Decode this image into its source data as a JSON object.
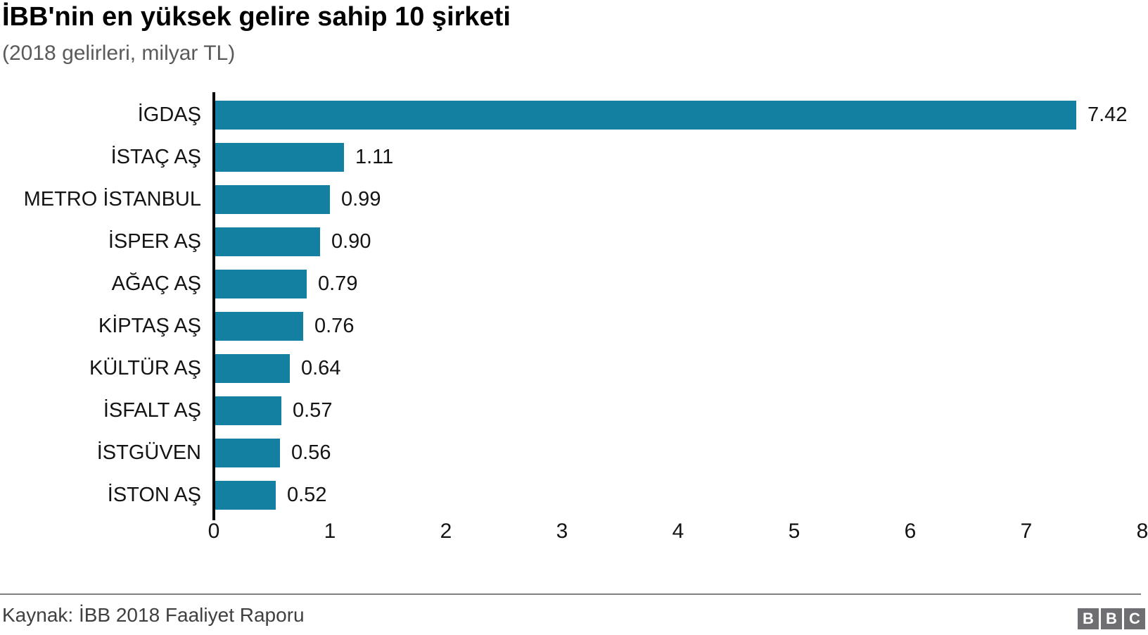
{
  "header": {
    "title": "İBB'nin en yüksek gelire sahip 10 şirketi",
    "subtitle": "(2018 gelirleri, milyar TL)"
  },
  "chart_data": {
    "type": "bar",
    "orientation": "horizontal",
    "title": "İBB'nin en yüksek gelire sahip 10 şirketi",
    "subtitle": "(2018 gelirleri, milyar TL)",
    "categories": [
      "İGDAŞ",
      "İSTAÇ AŞ",
      "METRO İSTANBUL",
      "İSPER AŞ",
      "AĞAÇ AŞ",
      "KİPTAŞ AŞ",
      "KÜLTÜR AŞ",
      "İSFALT AŞ",
      "İSTGÜVEN",
      "İSTON AŞ"
    ],
    "values": [
      7.42,
      1.11,
      0.99,
      0.9,
      0.79,
      0.76,
      0.64,
      0.57,
      0.56,
      0.52
    ],
    "value_labels": [
      "7.42",
      "1.11",
      "0.99",
      "0.90",
      "0.79",
      "0.76",
      "0.64",
      "0.57",
      "0.56",
      "0.52"
    ],
    "xlabel": "",
    "ylabel": "",
    "xlim": [
      0,
      8
    ],
    "x_ticks": [
      0,
      1,
      2,
      3,
      4,
      5,
      6,
      7,
      8
    ],
    "grid": false,
    "legend": false,
    "bar_color": "#1380A1"
  },
  "footer": {
    "source": "Kaynak: İBB 2018 Faaliyet Raporu",
    "logo_letters": [
      "B",
      "B",
      "C"
    ]
  }
}
